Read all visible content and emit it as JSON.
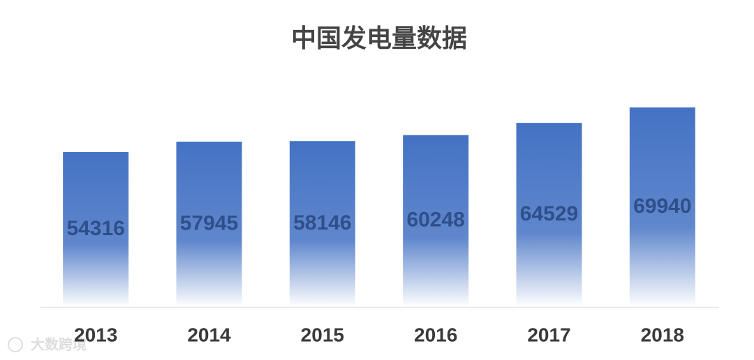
{
  "chart_data": {
    "type": "bar",
    "title": "中国发电量数据",
    "categories": [
      "2013",
      "2014",
      "2015",
      "2016",
      "2017",
      "2018"
    ],
    "values": [
      54316,
      57945,
      58146,
      60248,
      64529,
      69940
    ],
    "color": "#4472c4"
  },
  "watermark": "大数跨境"
}
